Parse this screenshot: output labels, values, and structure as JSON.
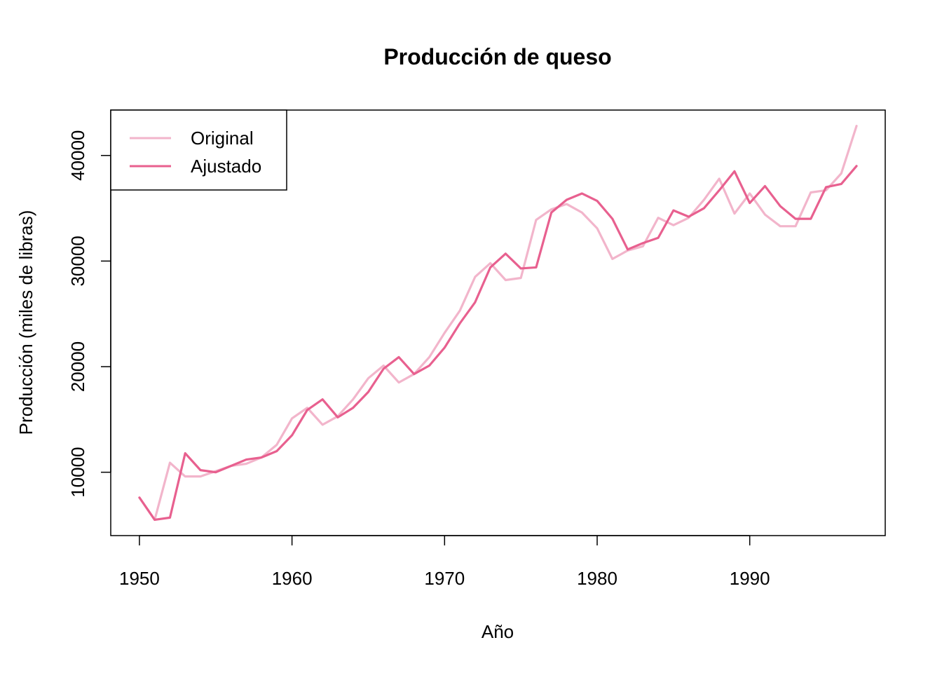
{
  "chart_data": {
    "type": "line",
    "title": "Producción de queso",
    "xlabel": "Año",
    "ylabel": "Producción (miles de libras)",
    "xlim": [
      1948.12,
      1998.88
    ],
    "ylim": [
      4000,
      44300
    ],
    "x_ticks": [
      1950,
      1960,
      1970,
      1980,
      1990
    ],
    "y_ticks": [
      10000,
      20000,
      30000,
      40000
    ],
    "grid": false,
    "legend_position": "top-left",
    "x": [
      1950,
      1951,
      1952,
      1953,
      1954,
      1955,
      1956,
      1957,
      1958,
      1959,
      1960,
      1961,
      1962,
      1963,
      1964,
      1965,
      1966,
      1967,
      1968,
      1969,
      1970,
      1971,
      1972,
      1973,
      1974,
      1975,
      1976,
      1977,
      1978,
      1979,
      1980,
      1981,
      1982,
      1983,
      1984,
      1985,
      1986,
      1987,
      1988,
      1989,
      1990,
      1991,
      1992,
      1993,
      1994,
      1995,
      1996,
      1997
    ],
    "series": [
      {
        "name": "Original",
        "color": "#f2b5cb",
        "values": [
          7600,
          5500,
          10900,
          9600,
          9600,
          10100,
          10600,
          10800,
          11400,
          12600,
          15100,
          16100,
          14500,
          15300,
          16900,
          18900,
          20100,
          18500,
          19300,
          20900,
          23200,
          25300,
          28500,
          29800,
          28200,
          28400,
          33900,
          34900,
          35400,
          34600,
          33100,
          30200,
          31000,
          31400,
          34100,
          33400,
          34100,
          35800,
          37800,
          34500,
          36400,
          34400,
          33300,
          33300,
          36500,
          36700,
          38300,
          42800
        ]
      },
      {
        "name": "Ajustado",
        "color": "#e8608f",
        "values": [
          7600,
          5500,
          5700,
          11800,
          10200,
          10000,
          10600,
          11200,
          11400,
          12000,
          13500,
          15900,
          16900,
          15200,
          16100,
          17600,
          19800,
          20900,
          19300,
          20100,
          21800,
          24100,
          26100,
          29400,
          30700,
          29300,
          29400,
          34600,
          35800,
          36400,
          35700,
          34000,
          31100,
          31700,
          32200,
          34800,
          34200,
          35000,
          36700,
          38500,
          35500,
          37100,
          35200,
          34000,
          34000,
          37000,
          37300,
          39000
        ]
      }
    ]
  }
}
